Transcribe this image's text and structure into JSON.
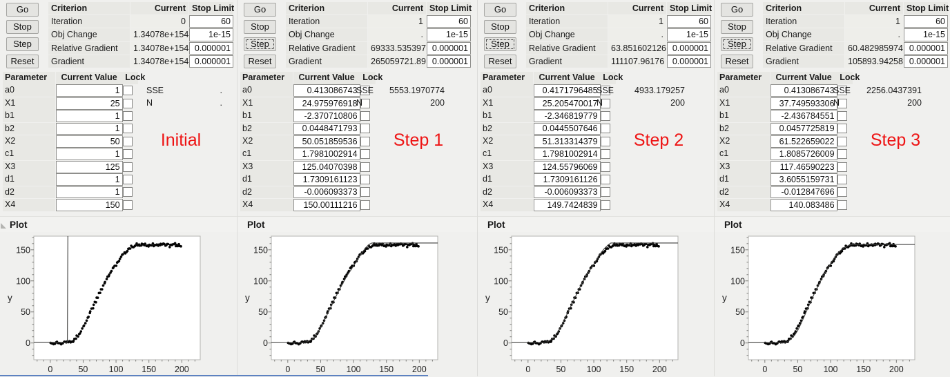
{
  "shared": {
    "buttons": [
      "Go",
      "Stop",
      "Step",
      "Reset"
    ],
    "criterion_headers": [
      "Criterion",
      "Current",
      "Stop Limit"
    ],
    "param_headers": [
      "Parameter",
      "Current Value",
      "Lock"
    ],
    "plot_title": "Plot",
    "sse_label": "SSE",
    "n_label": "N",
    "y_axis_label": "y",
    "annotation_color": "#ee1414"
  },
  "panels": [
    {
      "step_label": "Initial",
      "step_focused": false,
      "has_disclosure_icon": true,
      "criterion_rows": [
        {
          "name": "Iteration",
          "current": "0",
          "stop_limit": "60"
        },
        {
          "name": "Obj Change",
          "current": "1.34078e+154",
          "stop_limit": "1e-15"
        },
        {
          "name": "Relative Gradient",
          "current": "1.34078e+154",
          "stop_limit": "0.000001"
        },
        {
          "name": "Gradient",
          "current": "1.34078e+154",
          "stop_limit": "0.000001"
        }
      ],
      "parameters": [
        {
          "name": "a0",
          "value": "1"
        },
        {
          "name": "X1",
          "value": "25"
        },
        {
          "name": "b1",
          "value": "1"
        },
        {
          "name": "b2",
          "value": "1"
        },
        {
          "name": "X2",
          "value": "50"
        },
        {
          "name": "c1",
          "value": "1"
        },
        {
          "name": "X3",
          "value": "125"
        },
        {
          "name": "d1",
          "value": "1"
        },
        {
          "name": "d2",
          "value": "1"
        },
        {
          "name": "X4",
          "value": "150"
        }
      ],
      "sse": ".",
      "n": "."
    },
    {
      "step_label": "Step 1",
      "step_focused": true,
      "has_disclosure_icon": false,
      "criterion_rows": [
        {
          "name": "Iteration",
          "current": "1",
          "stop_limit": "60"
        },
        {
          "name": "Obj Change",
          "current": ".",
          "stop_limit": "1e-15"
        },
        {
          "name": "Relative Gradient",
          "current": "69333.535397",
          "stop_limit": "0.000001"
        },
        {
          "name": "Gradient",
          "current": "265059721.89",
          "stop_limit": "0.000001"
        }
      ],
      "parameters": [
        {
          "name": "a0",
          "value": "0.413086743"
        },
        {
          "name": "X1",
          "value": "24.975976918"
        },
        {
          "name": "b1",
          "value": "-2.370710806"
        },
        {
          "name": "b2",
          "value": "0.0448471793"
        },
        {
          "name": "X2",
          "value": "50.051859536"
        },
        {
          "name": "c1",
          "value": "1.7981002914"
        },
        {
          "name": "X3",
          "value": "125.04070398"
        },
        {
          "name": "d1",
          "value": "1.7309161123"
        },
        {
          "name": "d2",
          "value": "-0.006093373"
        },
        {
          "name": "X4",
          "value": "150.00111216"
        }
      ],
      "sse": "5553.1970774",
      "n": "200"
    },
    {
      "step_label": "Step 2",
      "step_focused": true,
      "has_disclosure_icon": false,
      "criterion_rows": [
        {
          "name": "Iteration",
          "current": "1",
          "stop_limit": "60"
        },
        {
          "name": "Obj Change",
          "current": ".",
          "stop_limit": "1e-15"
        },
        {
          "name": "Relative Gradient",
          "current": "63.851602126",
          "stop_limit": "0.000001"
        },
        {
          "name": "Gradient",
          "current": "111107.96176",
          "stop_limit": "0.000001"
        }
      ],
      "parameters": [
        {
          "name": "a0",
          "value": "0.4171796485"
        },
        {
          "name": "X1",
          "value": "25.205470017"
        },
        {
          "name": "b1",
          "value": "-2.346819779"
        },
        {
          "name": "b2",
          "value": "0.0445507646"
        },
        {
          "name": "X2",
          "value": "51.313314379"
        },
        {
          "name": "c1",
          "value": "1.7981002914"
        },
        {
          "name": "X3",
          "value": "124.55796069"
        },
        {
          "name": "d1",
          "value": "1.7309161126"
        },
        {
          "name": "d2",
          "value": "-0.006093373"
        },
        {
          "name": "X4",
          "value": "149.7424839"
        }
      ],
      "sse": "4933.179257",
      "n": "200"
    },
    {
      "step_label": "Step 3",
      "step_focused": true,
      "has_disclosure_icon": false,
      "criterion_rows": [
        {
          "name": "Iteration",
          "current": "1",
          "stop_limit": "60"
        },
        {
          "name": "Obj Change",
          "current": ".",
          "stop_limit": "1e-15"
        },
        {
          "name": "Relative Gradient",
          "current": "60.482985974",
          "stop_limit": "0.000001"
        },
        {
          "name": "Gradient",
          "current": "105893.94258",
          "stop_limit": "0.000001"
        }
      ],
      "parameters": [
        {
          "name": "a0",
          "value": "0.413086743"
        },
        {
          "name": "X1",
          "value": "37.749593306"
        },
        {
          "name": "b1",
          "value": "-2.436784551"
        },
        {
          "name": "b2",
          "value": "0.0457725819"
        },
        {
          "name": "X2",
          "value": "61.522659022"
        },
        {
          "name": "c1",
          "value": "1.8085726009"
        },
        {
          "name": "X3",
          "value": "117.46590223"
        },
        {
          "name": "d1",
          "value": "3.6055159731"
        },
        {
          "name": "d2",
          "value": "-0.012847696"
        },
        {
          "name": "X4",
          "value": "140.083486"
        }
      ],
      "sse": "2256.0437391",
      "n": "200"
    }
  ],
  "chart_data": {
    "type": "scatter",
    "title": "Plot",
    "xlabel": "",
    "ylabel": "y",
    "xlim": [
      -25,
      228
    ],
    "ylim": [
      -27,
      172
    ],
    "x_ticks": [
      0,
      50,
      100,
      150,
      200
    ],
    "y_ticks": [
      0,
      50,
      100,
      150
    ],
    "minor_tick_step": 10,
    "grid": false,
    "n_points": 200,
    "scatter_trend": [
      [
        0,
        0
      ],
      [
        5,
        -0.5
      ],
      [
        10,
        0.5
      ],
      [
        15,
        -1
      ],
      [
        20,
        0
      ],
      [
        25,
        1
      ],
      [
        30,
        1.5
      ],
      [
        35,
        4
      ],
      [
        40,
        9
      ],
      [
        45,
        16
      ],
      [
        50,
        26
      ],
      [
        55,
        37
      ],
      [
        60,
        48
      ],
      [
        65,
        59
      ],
      [
        70,
        70
      ],
      [
        75,
        81
      ],
      [
        80,
        91
      ],
      [
        85,
        101
      ],
      [
        90,
        110
      ],
      [
        95,
        119
      ],
      [
        100,
        127
      ],
      [
        105,
        135
      ],
      [
        110,
        142
      ],
      [
        115,
        147
      ],
      [
        120,
        152
      ],
      [
        125,
        155
      ],
      [
        130,
        158
      ],
      [
        135,
        159
      ],
      [
        140,
        158
      ],
      [
        145,
        159
      ],
      [
        150,
        157
      ],
      [
        155,
        158
      ],
      [
        160,
        159
      ],
      [
        165,
        158
      ],
      [
        170,
        158
      ],
      [
        175,
        159
      ],
      [
        180,
        157
      ],
      [
        185,
        158
      ],
      [
        190,
        158
      ],
      [
        195,
        157
      ],
      [
        200,
        157
      ]
    ],
    "fits": [
      {
        "panel": "Initial",
        "line": [
          [
            -25,
            1
          ],
          [
            26,
            1
          ],
          [
            26.8,
            172
          ]
        ]
      },
      {
        "panel": "Step 1",
        "line": [
          [
            -25,
            0.6
          ],
          [
            20,
            0.8
          ],
          [
            30,
            2
          ],
          [
            40,
            8
          ],
          [
            50,
            24
          ],
          [
            60,
            46
          ],
          [
            70,
            68
          ],
          [
            80,
            89
          ],
          [
            90,
            108
          ],
          [
            100,
            124
          ],
          [
            110,
            141
          ],
          [
            118,
            153
          ],
          [
            124,
            159
          ],
          [
            128,
            161
          ],
          [
            228,
            161
          ]
        ]
      },
      {
        "panel": "Step 2",
        "line": [
          [
            -25,
            0.6
          ],
          [
            20,
            0.8
          ],
          [
            30,
            2
          ],
          [
            40,
            9
          ],
          [
            50,
            26
          ],
          [
            60,
            48
          ],
          [
            70,
            70
          ],
          [
            80,
            92
          ],
          [
            90,
            111
          ],
          [
            100,
            127
          ],
          [
            108,
            141
          ],
          [
            116,
            152
          ],
          [
            122,
            158
          ],
          [
            126,
            161
          ],
          [
            228,
            161
          ]
        ]
      },
      {
        "panel": "Step 3",
        "line": [
          [
            -25,
            0.5
          ],
          [
            25,
            0.7
          ],
          [
            35,
            2
          ],
          [
            45,
            12
          ],
          [
            50,
            20
          ],
          [
            55,
            31
          ],
          [
            60,
            43
          ],
          [
            65,
            55
          ],
          [
            70,
            67
          ],
          [
            75,
            79
          ],
          [
            80,
            90
          ],
          [
            85,
            100
          ],
          [
            90,
            110
          ],
          [
            95,
            119
          ],
          [
            100,
            128
          ],
          [
            105,
            136
          ],
          [
            110,
            143
          ],
          [
            115,
            149
          ],
          [
            120,
            153
          ],
          [
            125,
            156
          ],
          [
            130,
            158
          ],
          [
            140,
            158.5
          ],
          [
            228,
            158.5
          ]
        ]
      }
    ]
  }
}
